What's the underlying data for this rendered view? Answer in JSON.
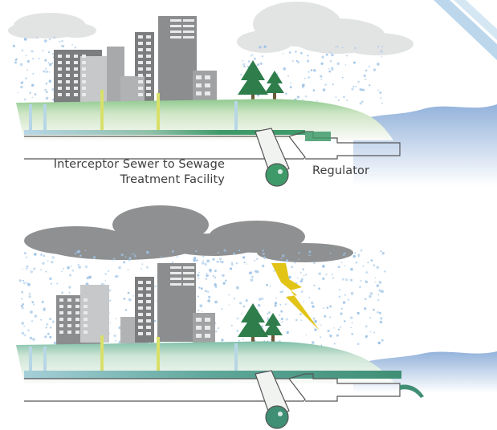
{
  "labels": {
    "interceptor_line1": "Interceptor Sewer to Sewage",
    "interceptor_line2": "Treatment Facility",
    "regulator": "Regulator"
  },
  "colors": {
    "cloud_light": "#e2e4e4",
    "cloud_dark": "#8e9091",
    "building_dark": "#7b7d7e",
    "building_light": "#c6c8c9",
    "building_mid": "#a7a9ab",
    "rain": "#9fc4e6",
    "grass": "#8fc98f",
    "ground_soil": "#f4f7f1",
    "pipe_blue": "#b7d6e6",
    "pipe_green": "#3f9a6a",
    "pipe_teal": "#5ea79a",
    "vertical_yellow": "#d9e06a",
    "water": "#93b2db",
    "tree": "#2e7d4b",
    "lightning": "#e2c417"
  },
  "scenes": [
    {
      "name": "dry-weather",
      "condition": "normal flow to treatment facility"
    },
    {
      "name": "wet-weather",
      "condition": "storm overflow to receiving water"
    }
  ],
  "icons": [
    "cloud-icon",
    "raindrop-icon",
    "tree-icon",
    "lightning-bolt-icon",
    "building-icon"
  ]
}
